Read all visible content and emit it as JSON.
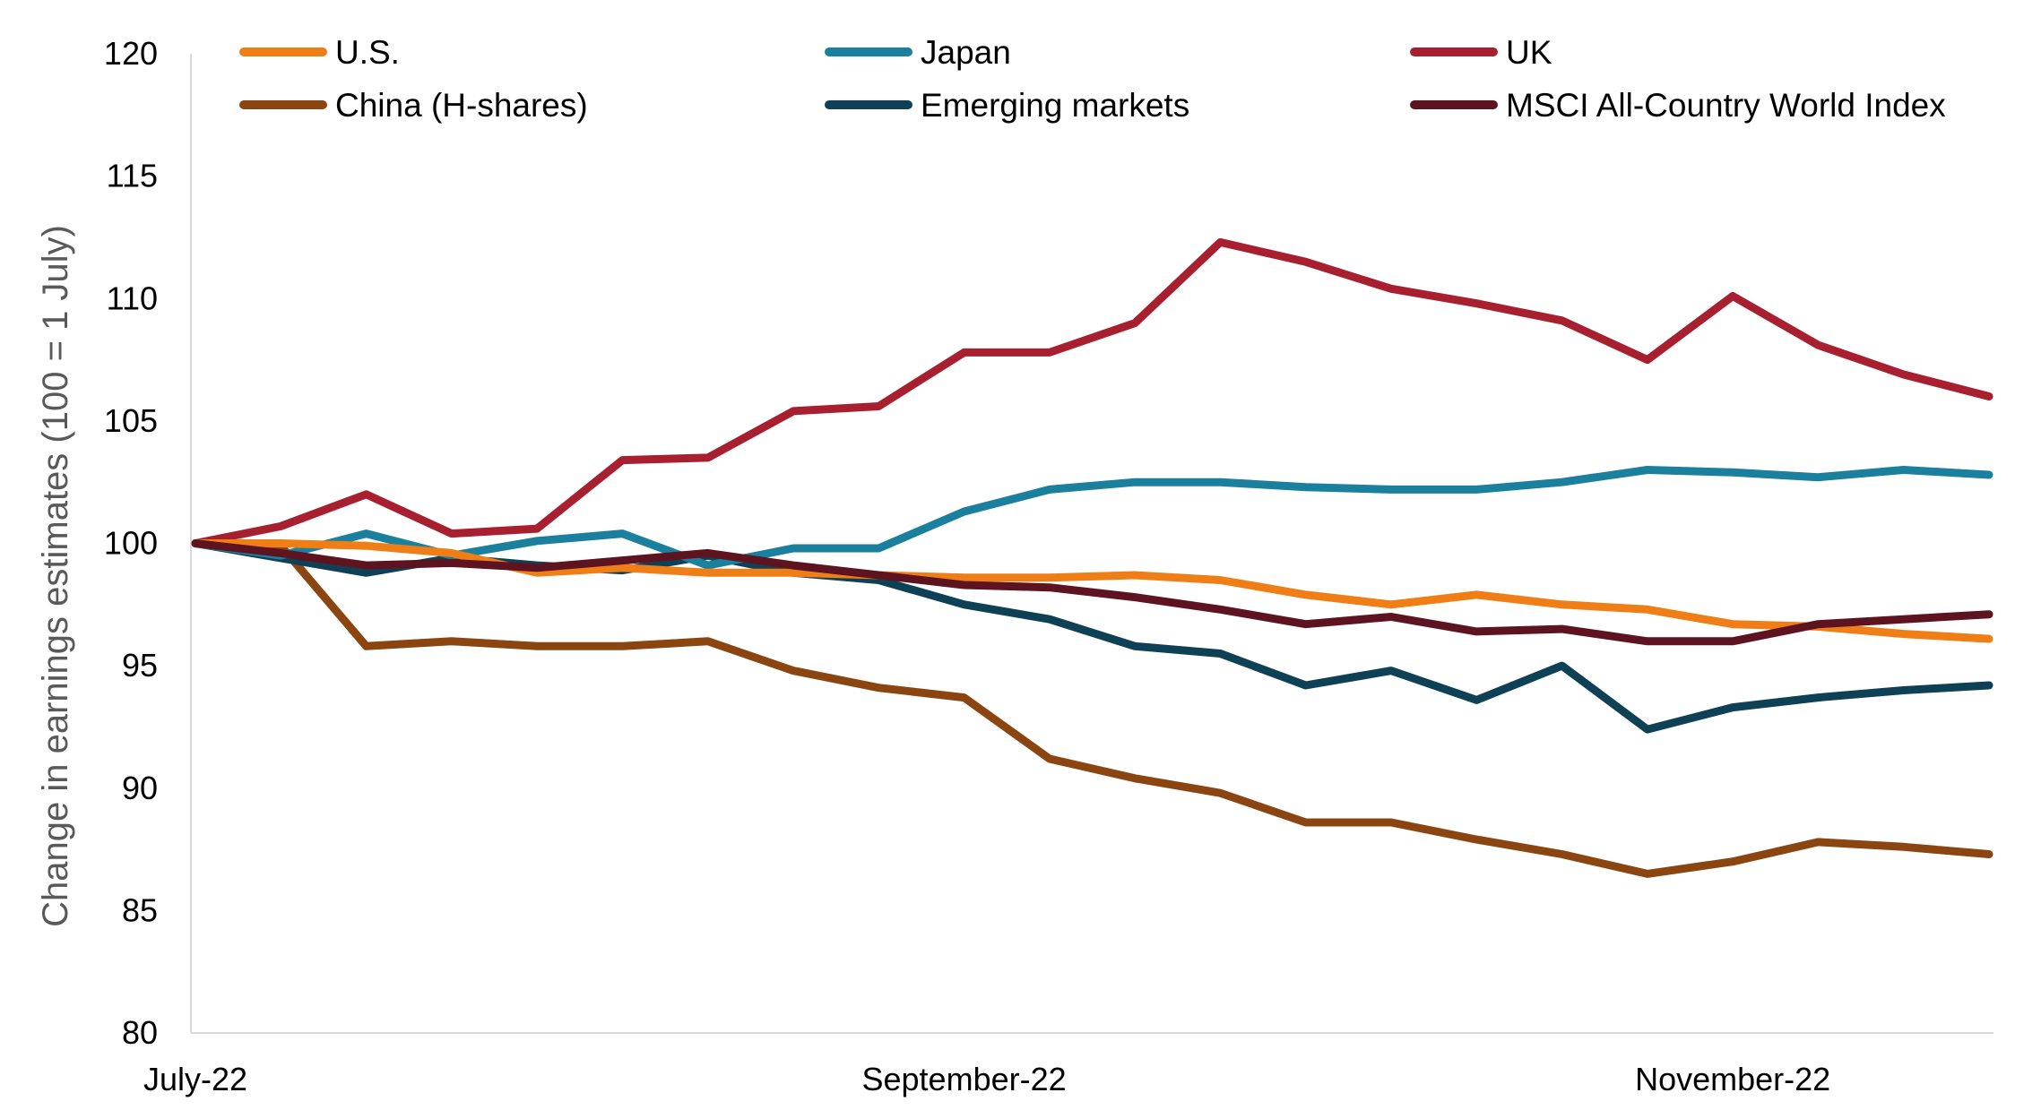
{
  "chart_data": {
    "type": "line",
    "xlabel": "",
    "ylabel": "Change in earnings estimates (100 = 1 July)",
    "ylim": [
      80,
      120
    ],
    "yticks": [
      80,
      85,
      90,
      95,
      100,
      105,
      110,
      115,
      120
    ],
    "x_tick_labels": [
      {
        "label": "July-22",
        "index": 0
      },
      {
        "label": "September-22",
        "index": 9
      },
      {
        "label": "November-22",
        "index": 18
      }
    ],
    "num_points": 22,
    "grid": false,
    "legend_position": "top",
    "series": [
      {
        "name": "U.S.",
        "color": "#F07E16",
        "values": [
          100,
          100,
          99.9,
          99.6,
          98.8,
          99,
          98.8,
          98.8,
          98.7,
          98.6,
          98.6,
          98.7,
          98.5,
          97.9,
          97.5,
          97.9,
          97.5,
          97.3,
          96.7,
          96.6,
          96.3,
          96.1
        ]
      },
      {
        "name": "Japan",
        "color": "#1B7F9E",
        "values": [
          100,
          99.5,
          100.4,
          99.5,
          100.1,
          100.4,
          99.1,
          99.8,
          99.8,
          101.3,
          102.2,
          102.5,
          102.5,
          102.3,
          102.2,
          102.2,
          102.5,
          103,
          102.9,
          102.7,
          103,
          102.8
        ]
      },
      {
        "name": "UK",
        "color": "#A8202F",
        "values": [
          100,
          100.7,
          102,
          100.4,
          100.6,
          103.4,
          103.5,
          105.4,
          105.6,
          107.8,
          107.8,
          109,
          112.3,
          111.5,
          110.4,
          109.8,
          109.1,
          107.5,
          110.1,
          108.1,
          106.9,
          106
        ]
      },
      {
        "name": "China (H-shares)",
        "color": "#8B4510",
        "values": [
          100,
          99.9,
          95.8,
          96,
          95.8,
          95.8,
          96,
          94.8,
          94.1,
          93.7,
          91.2,
          90.4,
          89.8,
          88.6,
          88.6,
          87.9,
          87.3,
          86.5,
          87,
          87.8,
          87.6,
          87.3
        ]
      },
      {
        "name": "Emerging markets",
        "color": "#0E4155",
        "values": [
          100,
          99.4,
          98.8,
          99.4,
          99.1,
          98.9,
          99.5,
          98.8,
          98.5,
          97.5,
          96.9,
          95.8,
          95.5,
          94.2,
          94.8,
          93.6,
          95,
          92.4,
          93.3,
          93.7,
          94,
          94.2
        ]
      },
      {
        "name": "MSCI All-Country World Index",
        "color": "#5E1420",
        "values": [
          100,
          99.6,
          99.1,
          99.2,
          99,
          99.3,
          99.6,
          99.1,
          98.7,
          98.3,
          98.2,
          97.8,
          97.3,
          96.7,
          97,
          96.4,
          96.5,
          96,
          96,
          96.7,
          96.9,
          97.1
        ]
      }
    ]
  }
}
